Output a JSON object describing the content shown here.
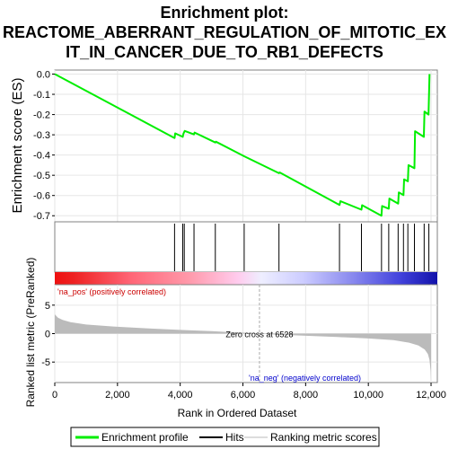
{
  "title_lines": [
    "Enrichment plot:",
    "REACTOME_ABERRANT_REGULATION_OF_MITOTIC_EX",
    "IT_IN_CANCER_DUE_TO_RB1_DEFECTS"
  ],
  "colors": {
    "es_line": "#00ee00",
    "hits": "#000000",
    "ranked_fill": "#bbbbbb",
    "pos_label": "#cc0000",
    "neg_label": "#0000cc",
    "zero_cross_line": "#aaaaaa"
  },
  "chart_data": [
    {
      "type": "line",
      "name": "enrichment-profile",
      "ylabel": "Enrichment score (ES)",
      "xlim": [
        0,
        12200
      ],
      "ylim": [
        -0.73,
        0.02
      ],
      "yticks": [
        0.0,
        -0.1,
        -0.2,
        -0.3,
        -0.4,
        -0.5,
        -0.6,
        -0.7
      ],
      "ytick_labels": [
        "0.0",
        "-0.1",
        "-0.2",
        "-0.3",
        "-0.4",
        "-0.5",
        "-0.6",
        "-0.7"
      ],
      "grid": true,
      "points": [
        [
          0,
          0.0
        ],
        [
          3820,
          -0.316
        ],
        [
          3840,
          -0.293
        ],
        [
          4080,
          -0.31
        ],
        [
          4105,
          -0.294
        ],
        [
          4145,
          -0.281
        ],
        [
          4440,
          -0.298
        ],
        [
          4460,
          -0.289
        ],
        [
          5120,
          -0.338
        ],
        [
          5140,
          -0.334
        ],
        [
          6040,
          -0.406
        ],
        [
          7150,
          -0.49
        ],
        [
          7170,
          -0.486
        ],
        [
          9080,
          -0.647
        ],
        [
          9110,
          -0.628
        ],
        [
          9780,
          -0.67
        ],
        [
          9800,
          -0.648
        ],
        [
          10420,
          -0.7
        ],
        [
          10440,
          -0.652
        ],
        [
          10650,
          -0.665
        ],
        [
          10670,
          -0.615
        ],
        [
          10950,
          -0.64
        ],
        [
          10970,
          -0.585
        ],
        [
          11120,
          -0.598
        ],
        [
          11140,
          -0.52
        ],
        [
          11260,
          -0.53
        ],
        [
          11280,
          -0.45
        ],
        [
          11470,
          -0.465
        ],
        [
          11490,
          -0.282
        ],
        [
          11770,
          -0.31
        ],
        [
          11790,
          -0.185
        ],
        [
          11920,
          -0.2
        ],
        [
          11950,
          0.0
        ]
      ]
    },
    {
      "type": "hits",
      "name": "hits",
      "xlim": [
        0,
        12200
      ],
      "positions": [
        3820,
        4080,
        4130,
        4440,
        5120,
        6040,
        7150,
        9080,
        9780,
        10420,
        10650,
        10950,
        11120,
        11260,
        11470,
        11780,
        11930
      ]
    },
    {
      "type": "area",
      "name": "ranked-list-metric",
      "xlabel": "Rank in Ordered Dataset",
      "ylabel": "Ranked list metric (PreRanked)",
      "xlim": [
        0,
        12200
      ],
      "ylim": [
        -8.6,
        8.6
      ],
      "xticks": [
        0,
        2000,
        4000,
        6000,
        8000,
        10000,
        12000
      ],
      "xtick_labels": [
        "0",
        "2,000",
        "4,000",
        "6,000",
        "8,000",
        "10,000",
        "12,000"
      ],
      "yticks": [
        5,
        0,
        -5
      ],
      "ytick_labels": [
        "5",
        "0",
        "-5"
      ],
      "points": [
        [
          0,
          3.4
        ],
        [
          100,
          2.8
        ],
        [
          250,
          2.4
        ],
        [
          500,
          2.0
        ],
        [
          1000,
          1.6
        ],
        [
          2000,
          1.2
        ],
        [
          3000,
          0.9
        ],
        [
          4000,
          0.65
        ],
        [
          5000,
          0.42
        ],
        [
          6000,
          0.18
        ],
        [
          6528,
          0.0
        ],
        [
          7000,
          -0.15
        ],
        [
          8000,
          -0.38
        ],
        [
          9000,
          -0.6
        ],
        [
          10000,
          -0.85
        ],
        [
          10800,
          -1.15
        ],
        [
          11300,
          -1.6
        ],
        [
          11600,
          -2.1
        ],
        [
          11800,
          -2.8
        ],
        [
          11900,
          -3.6
        ],
        [
          11950,
          -4.6
        ],
        [
          11985,
          -6.5
        ],
        [
          12000,
          -8.5
        ],
        [
          12000,
          0.0
        ]
      ],
      "zero_cross": 6528,
      "zero_cross_label": "Zero cross at 6528",
      "pos_label": "'na_pos' (positively correlated)",
      "neg_label": "'na_neg' (negatively correlated)"
    }
  ],
  "legend": {
    "items": [
      {
        "label": "Enrichment profile"
      },
      {
        "label": "Hits"
      },
      {
        "label": "Ranking metric scores"
      }
    ]
  }
}
